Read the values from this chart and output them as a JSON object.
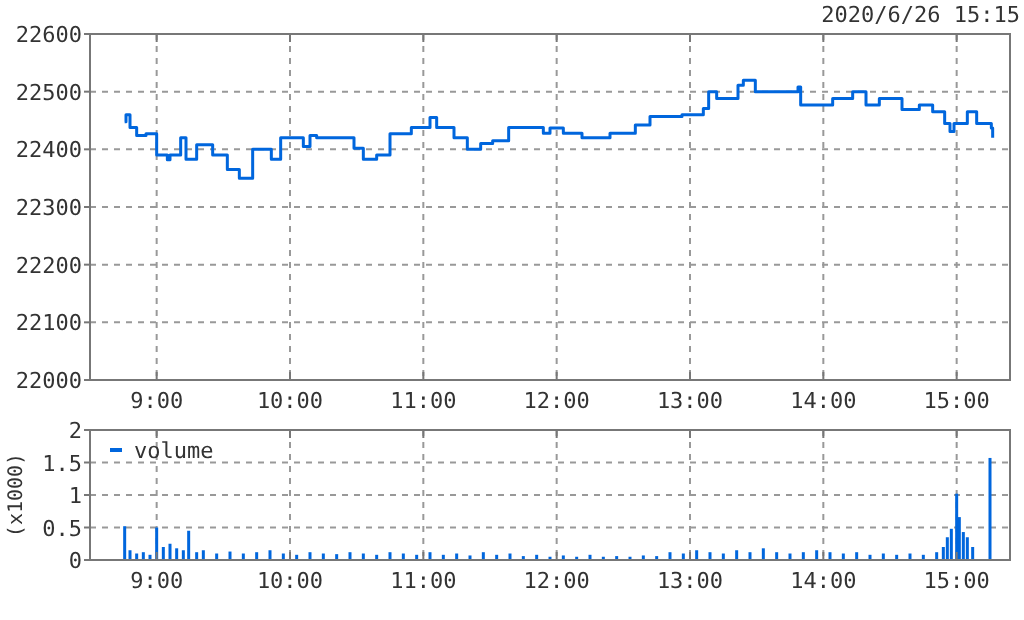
{
  "chart_data": [
    {
      "type": "step",
      "subtitle": "2020/6/26 15:15",
      "xlim": [
        8.5,
        15.4
      ],
      "xticks": [
        {
          "value": 9,
          "label": "9:00"
        },
        {
          "value": 10,
          "label": "10:00"
        },
        {
          "value": 11,
          "label": "11:00"
        },
        {
          "value": 12,
          "label": "12:00"
        },
        {
          "value": 13,
          "label": "13:00"
        },
        {
          "value": 14,
          "label": "14:00"
        },
        {
          "value": 15,
          "label": "15:00"
        }
      ],
      "ylim": [
        22000,
        22600
      ],
      "yticks": [
        22000,
        22100,
        22200,
        22300,
        22400,
        22500,
        22600
      ],
      "grid": true,
      "legend": false,
      "series": [
        {
          "color": "#0066dd",
          "x": [
            8.76,
            8.77,
            8.8,
            8.85,
            8.92,
            9.0,
            9.08,
            9.1,
            9.18,
            9.22,
            9.3,
            9.42,
            9.53,
            9.62,
            9.72,
            9.86,
            9.93,
            10.1,
            10.15,
            10.2,
            10.48,
            10.55,
            10.65,
            10.75,
            10.91,
            11.05,
            11.1,
            11.23,
            11.33,
            11.43,
            11.52,
            11.64,
            11.9,
            11.95,
            12.05,
            12.19,
            12.4,
            12.59,
            12.7,
            12.94,
            13.1,
            13.14,
            13.2,
            13.36,
            13.4,
            13.49,
            13.81,
            13.83,
            14.07,
            14.22,
            14.32,
            14.42,
            14.59,
            14.72,
            14.82,
            14.91,
            14.95,
            14.98,
            15.08,
            15.15,
            15.26,
            15.27
          ],
          "values": [
            22448,
            22460,
            22438,
            22424,
            22427,
            22390,
            22382,
            22390,
            22420,
            22383,
            22408,
            22390,
            22365,
            22350,
            22400,
            22383,
            22420,
            22405,
            22424,
            22420,
            22402,
            22383,
            22390,
            22427,
            22438,
            22455,
            22438,
            22420,
            22400,
            22410,
            22415,
            22438,
            22428,
            22437,
            22428,
            22420,
            22428,
            22442,
            22457,
            22460,
            22471,
            22500,
            22488,
            22511,
            22520,
            22500,
            22508,
            22477,
            22488,
            22500,
            22477,
            22488,
            22469,
            22477,
            22465,
            22445,
            22431,
            22445,
            22465,
            22445,
            22437,
            22420
          ]
        }
      ]
    },
    {
      "type": "bar",
      "ylabel": "(x1000)",
      "xlim": [
        8.5,
        15.4
      ],
      "xticks": [
        {
          "value": 9,
          "label": "9:00"
        },
        {
          "value": 10,
          "label": "10:00"
        },
        {
          "value": 11,
          "label": "11:00"
        },
        {
          "value": 12,
          "label": "12:00"
        },
        {
          "value": 13,
          "label": "13:00"
        },
        {
          "value": 14,
          "label": "14:00"
        },
        {
          "value": 15,
          "label": "15:00"
        }
      ],
      "ylim": [
        0,
        2
      ],
      "yticks": [
        0,
        0.5,
        1,
        1.5,
        2
      ],
      "grid": true,
      "legend": "top left",
      "series": [
        {
          "name": "volume",
          "color": "#0066dd",
          "x": [
            8.76,
            8.8,
            8.85,
            8.9,
            8.95,
            9.0,
            9.05,
            9.1,
            9.15,
            9.2,
            9.24,
            9.3,
            9.35,
            9.45,
            9.55,
            9.65,
            9.75,
            9.85,
            9.95,
            10.05,
            10.15,
            10.25,
            10.35,
            10.45,
            10.55,
            10.65,
            10.75,
            10.85,
            10.95,
            11.05,
            11.15,
            11.25,
            11.35,
            11.45,
            11.55,
            11.65,
            11.75,
            11.85,
            11.95,
            12.05,
            12.15,
            12.25,
            12.35,
            12.45,
            12.55,
            12.65,
            12.75,
            12.85,
            12.95,
            13.05,
            13.15,
            13.25,
            13.35,
            13.45,
            13.55,
            13.65,
            13.75,
            13.85,
            13.95,
            14.05,
            14.15,
            14.25,
            14.35,
            14.45,
            14.55,
            14.65,
            14.75,
            14.85,
            14.9,
            14.93,
            14.96,
            15.0,
            15.02,
            15.05,
            15.08,
            15.12,
            15.25
          ],
          "values": [
            0.52,
            0.15,
            0.1,
            0.12,
            0.08,
            0.5,
            0.2,
            0.25,
            0.18,
            0.15,
            0.45,
            0.12,
            0.15,
            0.1,
            0.13,
            0.1,
            0.12,
            0.15,
            0.1,
            0.08,
            0.12,
            0.1,
            0.09,
            0.12,
            0.1,
            0.08,
            0.12,
            0.1,
            0.08,
            0.12,
            0.08,
            0.1,
            0.07,
            0.12,
            0.08,
            0.1,
            0.06,
            0.08,
            0.05,
            0.07,
            0.05,
            0.08,
            0.05,
            0.06,
            0.05,
            0.07,
            0.06,
            0.12,
            0.1,
            0.15,
            0.12,
            0.1,
            0.15,
            0.12,
            0.18,
            0.12,
            0.1,
            0.12,
            0.15,
            0.12,
            0.1,
            0.12,
            0.08,
            0.1,
            0.08,
            0.1,
            0.08,
            0.12,
            0.2,
            0.35,
            0.48,
            1.02,
            0.66,
            0.43,
            0.35,
            0.2,
            1.57
          ]
        }
      ]
    }
  ]
}
